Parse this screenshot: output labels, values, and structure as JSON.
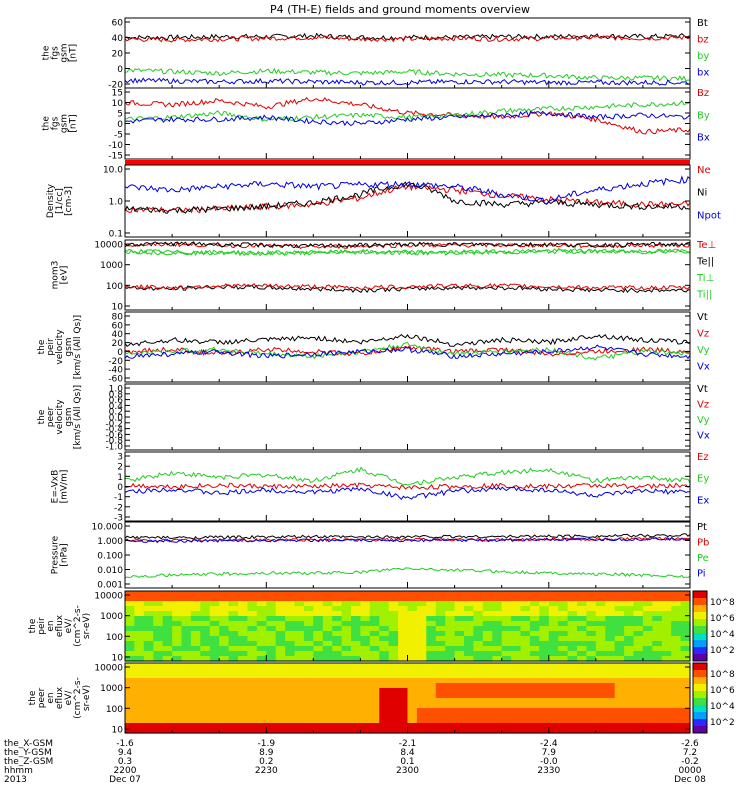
{
  "title": "P4 (TH-E) fields and ground moments overview",
  "panels": [
    {
      "ylabel": [
        "the",
        "fgs",
        "gsm",
        "[nT]"
      ],
      "ticks": [
        "60",
        "40",
        "20",
        "0",
        "-20"
      ],
      "legend": [
        {
          "text": "Bt",
          "color": "#000000"
        },
        {
          "text": "bz",
          "color": "#dd0000"
        },
        {
          "text": "by",
          "color": "#22cc22"
        },
        {
          "text": "bx",
          "color": "#0000dd"
        }
      ]
    },
    {
      "ylabel": [
        "the",
        "fgs",
        "gsm",
        "[nT]"
      ],
      "ticks": [
        "15",
        "10",
        "5",
        "0",
        "-5",
        "-10",
        "-15"
      ],
      "legend": [
        {
          "text": "Bz",
          "color": "#dd0000"
        },
        {
          "text": "By",
          "color": "#22cc22"
        },
        {
          "text": "Bx",
          "color": "#0000dd"
        }
      ]
    },
    {
      "ylabel": [
        "Density",
        "[1/cc]",
        "[cm-3]"
      ],
      "ticks": [
        "10.0",
        "1.0",
        "0.1"
      ],
      "legend": [
        {
          "text": "Ne",
          "color": "#dd0000"
        },
        {
          "text": "Ni",
          "color": "#000000"
        },
        {
          "text": "Npot",
          "color": "#0000dd"
        }
      ]
    },
    {
      "ylabel": [
        "mom3",
        "[eV]"
      ],
      "ticks": [
        "10000",
        "1000",
        "100",
        "10"
      ],
      "legend": [
        {
          "text": "Te⊥",
          "color": "#dd0000"
        },
        {
          "text": "Te||",
          "color": "#000000"
        },
        {
          "text": "Ti⊥",
          "color": "#22cc22"
        },
        {
          "text": "Ti||",
          "color": "#22cc22"
        }
      ]
    },
    {
      "ylabel": [
        "the",
        "peir",
        "velocity",
        "gsm",
        "[km/s (All Qs)]"
      ],
      "ticks": [
        "80",
        "60",
        "40",
        "20",
        "0",
        "-20",
        "-40",
        "-60"
      ],
      "legend": [
        {
          "text": "Vt",
          "color": "#000000"
        },
        {
          "text": "Vz",
          "color": "#dd0000"
        },
        {
          "text": "Vy",
          "color": "#22cc22"
        },
        {
          "text": "Vx",
          "color": "#0000dd"
        }
      ]
    },
    {
      "ylabel": [
        "the",
        "peer",
        "velocity",
        "gsm",
        "[km/s (All Qs)]"
      ],
      "ticks": [
        "1.0",
        "0.8",
        "0.6",
        "0.4",
        "0.2",
        "0.0",
        "-0.2",
        "-0.4",
        "-0.6",
        "-0.8",
        "-1.0"
      ],
      "legend": [
        {
          "text": "Vt",
          "color": "#000000"
        },
        {
          "text": "Vz",
          "color": "#dd0000"
        },
        {
          "text": "Vy",
          "color": "#22cc22"
        },
        {
          "text": "Vx",
          "color": "#0000dd"
        }
      ]
    },
    {
      "ylabel": [
        "E=-VxB",
        "[mV/m]"
      ],
      "ticks": [
        "3",
        "2",
        "1",
        "0",
        "-1",
        "-2",
        "-3"
      ],
      "legend": [
        {
          "text": "Ez",
          "color": "#dd0000"
        },
        {
          "text": "Ey",
          "color": "#22cc22"
        },
        {
          "text": "Ex",
          "color": "#0000dd"
        }
      ]
    },
    {
      "ylabel": [
        "Pressure",
        "[nPa]"
      ],
      "ticks": [
        "10.000",
        "1.000",
        "0.100",
        "0.010",
        "0.001"
      ],
      "legend": [
        {
          "text": "Pt",
          "color": "#000000"
        },
        {
          "text": "Pb",
          "color": "#dd0000"
        },
        {
          "text": "Pe",
          "color": "#22cc22"
        },
        {
          "text": "Pi",
          "color": "#0000dd"
        }
      ]
    },
    {
      "ylabel": [
        "the",
        "peir",
        "en",
        "eflux",
        "eV/",
        "(cm^2-s-",
        "sr-eV)"
      ],
      "ticks": [
        "10000",
        "1000",
        "100",
        "10"
      ],
      "legend": [],
      "colorbar": [
        "10^8",
        "10^6",
        "10^4",
        "10^2"
      ]
    },
    {
      "ylabel": [
        "the",
        "peer",
        "en",
        "eflux",
        "eV/",
        "(cm^2-s-",
        "sr-eV)"
      ],
      "ticks": [
        "10000",
        "1000",
        "100",
        "10"
      ],
      "legend": [],
      "colorbar": [
        "10^8",
        "10^6",
        "10^4",
        "10^2"
      ]
    }
  ],
  "footer": {
    "row_labels": [
      "the_X-GSM",
      "the_Y-GSM",
      "the_Z-GSM",
      "hhmm",
      "2013"
    ],
    "columns": [
      [
        "-1.6",
        "9.4",
        "0.3",
        "2200",
        "Dec 07"
      ],
      [
        "-1.9",
        "8.9",
        "0.2",
        "2230",
        ""
      ],
      [
        "-2.1",
        "8.4",
        "0.1",
        "2300",
        ""
      ],
      [
        "-2.4",
        "7.9",
        "-0.0",
        "2330",
        ""
      ],
      [
        "-2.6",
        "7.2",
        "-0.2",
        "0000",
        "Dec 08"
      ]
    ]
  },
  "chart_data": {
    "type": "line",
    "title": "P4 (TH-E) fields and ground moments overview",
    "x_ticks": [
      "2200",
      "2230",
      "2300",
      "2330",
      "0000"
    ],
    "date_start": "2013 Dec 07",
    "date_end": "Dec 08",
    "panels": [
      {
        "name": "the_fgs_gsm",
        "ylabel": "the fgs gsm [nT]",
        "ylim": [
          -25,
          65
        ],
        "series": [
          {
            "name": "Bt",
            "color": "#000000",
            "values": [
              40,
              40,
              41,
              41,
              42,
              40,
              40,
              40,
              41,
              41,
              42,
              41,
              42
            ]
          },
          {
            "name": "bz",
            "color": "#dd0000",
            "values": [
              38,
              37,
              38,
              39,
              40,
              38,
              38,
              39,
              38,
              39,
              40,
              39,
              40
            ]
          },
          {
            "name": "by",
            "color": "#22cc22",
            "values": [
              -2,
              -4,
              -6,
              -3,
              -5,
              -6,
              -4,
              -7,
              -8,
              -9,
              -12,
              -12,
              -13
            ]
          },
          {
            "name": "bx",
            "color": "#0000dd",
            "values": [
              -15,
              -16,
              -17,
              -16,
              -17,
              -18,
              -18,
              -17,
              -17,
              -18,
              -18,
              -18,
              -18
            ]
          }
        ]
      },
      {
        "name": "the_fgs_gsm_detrended",
        "ylabel": "the fgs gsm [nT]",
        "ylim": [
          -18,
          16
        ],
        "series": [
          {
            "name": "Bz",
            "color": "#dd0000",
            "values": [
              9,
              8,
              10,
              7,
              11,
              8,
              4,
              3,
              2,
              4,
              1,
              -5,
              -4
            ]
          },
          {
            "name": "By",
            "color": "#22cc22",
            "values": [
              1,
              2,
              4,
              1,
              2,
              3,
              2,
              3,
              5,
              6,
              7,
              8,
              9
            ]
          },
          {
            "name": "Bx",
            "color": "#0000dd",
            "values": [
              0,
              1,
              1,
              2,
              0,
              -1,
              1,
              2,
              3,
              4,
              2,
              3,
              2
            ]
          }
        ]
      },
      {
        "name": "density",
        "ylabel": "Density [1/cc] [cm-3]",
        "ylim": [
          0.1,
          10
        ],
        "scale": "log",
        "series": [
          {
            "name": "Ne",
            "color": "#dd0000",
            "values": [
              0.6,
              0.55,
              0.6,
              0.7,
              0.8,
              1.2,
              2.5,
              2.0,
              1.4,
              1.1,
              0.9,
              0.8,
              0.8
            ]
          },
          {
            "name": "Ni",
            "color": "#000000",
            "values": [
              0.6,
              0.55,
              0.6,
              0.7,
              0.9,
              1.5,
              3.0,
              1.0,
              0.8,
              0.9,
              0.8,
              0.7,
              0.7
            ]
          },
          {
            "name": "Npot",
            "color": "#0000dd",
            "values": [
              2.5,
              2.0,
              2.5,
              3.0,
              2.5,
              2.8,
              3.0,
              2.5,
              1.5,
              1.0,
              2.0,
              3.0,
              4.0
            ]
          }
        ]
      },
      {
        "name": "temperature",
        "ylabel": "mom3 [eV]",
        "ylim": [
          10,
          10000
        ],
        "scale": "log",
        "series": [
          {
            "name": "Te⊥",
            "color": "#dd0000",
            "values": [
              6000,
              6500,
              6000,
              5500,
              5000,
              5500,
              6000,
              6000,
              6000,
              6000,
              5500,
              6000,
              6000
            ]
          },
          {
            "name": "Te||",
            "color": "#000000",
            "values": [
              6500,
              7000,
              6500,
              6000,
              5500,
              6000,
              6500,
              6500,
              6500,
              6500,
              6000,
              6500,
              6500
            ]
          },
          {
            "name": "Ti⊥",
            "color": "#22cc22",
            "values": [
              3500,
              3000,
              3000,
              2800,
              3000,
              3200,
              3000,
              3000,
              3200,
              3500,
              3400,
              3300,
              3500
            ]
          },
          {
            "name": "Ti||",
            "color": "#22cc22",
            "values": [
              3200,
              2800,
              2800,
              2600,
              2800,
              3000,
              2800,
              2800,
              3000,
              3200,
              3200,
              3100,
              3300
            ]
          },
          {
            "name": "Ti (lower black)",
            "color": "#000000",
            "values": [
              90,
              80,
              100,
              90,
              80,
              70,
              80,
              90,
              90,
              80,
              70,
              70,
              70
            ]
          },
          {
            "name": "Te (lower red)",
            "color": "#dd0000",
            "values": [
              100,
              90,
              110,
              110,
              100,
              90,
              100,
              110,
              110,
              100,
              90,
              90,
              90
            ]
          }
        ]
      },
      {
        "name": "peir_velocity",
        "ylabel": "the peir velocity gsm [km/s (All Qs)]",
        "ylim": [
          -60,
          90
        ],
        "series": [
          {
            "name": "Vt",
            "color": "#000000",
            "values": [
              20,
              30,
              25,
              30,
              35,
              25,
              40,
              20,
              30,
              25,
              40,
              30,
              25
            ]
          },
          {
            "name": "Vz",
            "color": "#dd0000",
            "values": [
              5,
              10,
              0,
              10,
              5,
              0,
              15,
              5,
              10,
              0,
              5,
              10,
              5
            ]
          },
          {
            "name": "Vy",
            "color": "#22cc22",
            "values": [
              0,
              5,
              10,
              0,
              -5,
              5,
              20,
              0,
              5,
              10,
              -10,
              5,
              0
            ]
          },
          {
            "name": "Vx",
            "color": "#0000dd",
            "values": [
              -5,
              0,
              5,
              -5,
              0,
              5,
              10,
              -5,
              0,
              5,
              15,
              0,
              -5
            ]
          }
        ]
      },
      {
        "name": "peer_velocity",
        "ylabel": "the peer velocity gsm [km/s (All Qs)]",
        "ylim": [
          -1,
          1
        ],
        "series": []
      },
      {
        "name": "efield",
        "ylabel": "E=-VxB [mV/m]",
        "ylim": [
          -3,
          3
        ],
        "series": [
          {
            "name": "Ez",
            "color": "#dd0000",
            "values": [
              0.1,
              0.0,
              0.1,
              0.0,
              0.0,
              0.1,
              -0.1,
              0.0,
              0.1,
              0.0,
              0.1,
              0.0,
              0.1
            ]
          },
          {
            "name": "Ey",
            "color": "#22cc22",
            "values": [
              0.5,
              1.2,
              0.8,
              1.0,
              0.5,
              1.5,
              0.2,
              0.8,
              1.2,
              1.5,
              0.5,
              0.8,
              0.5
            ]
          },
          {
            "name": "Ex",
            "color": "#0000dd",
            "values": [
              -0.5,
              -0.2,
              -0.6,
              -0.3,
              -0.5,
              -0.2,
              -1.0,
              -0.4,
              -0.2,
              -0.3,
              -0.8,
              -0.4,
              -0.5
            ]
          }
        ]
      },
      {
        "name": "pressure",
        "ylabel": "Pressure [nPa]",
        "ylim": [
          0.001,
          10
        ],
        "scale": "log",
        "series": [
          {
            "name": "Pt",
            "color": "#000000",
            "values": [
              1.2,
              1.1,
              1.2,
              1.2,
              1.3,
              1.2,
              1.3,
              1.3,
              1.3,
              1.4,
              1.4,
              1.5,
              1.6
            ]
          },
          {
            "name": "Pb",
            "color": "#dd0000",
            "values": [
              0.8,
              0.75,
              0.8,
              0.8,
              0.85,
              0.8,
              0.85,
              0.85,
              0.85,
              0.9,
              0.9,
              0.95,
              1.0
            ]
          },
          {
            "name": "Pe",
            "color": "#22cc22",
            "values": [
              0.005,
              0.006,
              0.007,
              0.008,
              0.008,
              0.009,
              0.015,
              0.012,
              0.01,
              0.008,
              0.007,
              0.006,
              0.005
            ]
          },
          {
            "name": "Pi",
            "color": "#0000dd",
            "values": [
              0.7,
              0.7,
              0.75,
              0.75,
              0.8,
              0.75,
              0.8,
              0.8,
              0.8,
              0.85,
              0.85,
              0.9,
              0.95
            ]
          }
        ]
      },
      {
        "name": "peir_spectrogram",
        "type": "heatmap",
        "ylabel": "the peir en eflux eV/(cm^2-s-sr-eV)",
        "ylim": [
          5,
          30000
        ],
        "scale": "log",
        "colorbar": [
          "10^8",
          "10^6",
          "10^4",
          "10^2"
        ]
      },
      {
        "name": "peer_spectrogram",
        "type": "heatmap",
        "ylabel": "the peer en eflux eV/(cm^2-s-sr-eV)",
        "ylim": [
          5,
          30000
        ],
        "scale": "log",
        "colorbar": [
          "10^8",
          "10^6",
          "10^4",
          "10^2"
        ]
      }
    ]
  }
}
